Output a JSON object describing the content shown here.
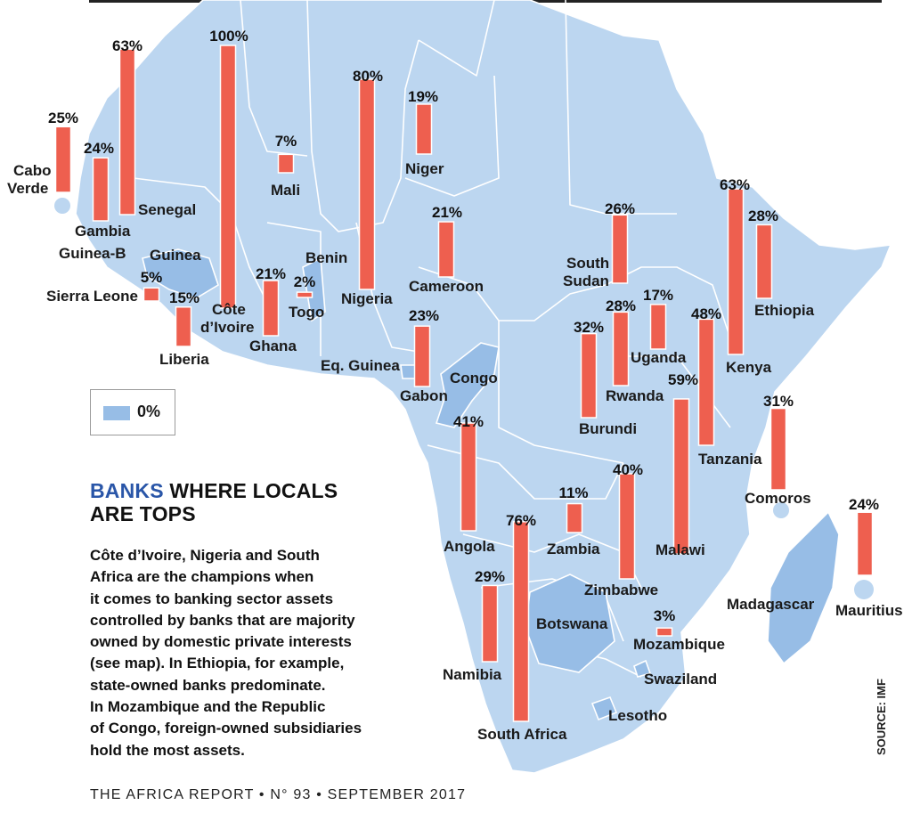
{
  "title_accent": "BANKS",
  "title_rest_line1": " WHERE LOCALS",
  "title_line2": "ARE TOPS",
  "body_lines": [
    "Côte d’Ivoire, Nigeria and South",
    "Africa are the champions when",
    "it comes to banking sector assets",
    "controlled by banks that are majority",
    "owned by domestic private interests",
    "(see map). In Ethiopia, for example,",
    "state-owned banks predominate.",
    "In Mozambique and the Republic",
    "of Congo, foreign-owned subsidiaries",
    "hold the most assets."
  ],
  "legend_label": "0%",
  "source": "SOURCE: IMF",
  "footer": "THE AFRICA REPORT • N° 93 • SEPTEMBER 2017",
  "colors": {
    "bar": "#ee5f4f",
    "land": "#bcd6f0",
    "zero": "#97bde6",
    "accent": "#2a56a8"
  },
  "map_data": {
    "measure": "Share of banking sector assets controlled by majority domestic-private banks (%)",
    "countries": [
      {
        "name": "Cabo Verde",
        "value": 25
      },
      {
        "name": "Gambia",
        "value": 24
      },
      {
        "name": "Senegal",
        "value": 63
      },
      {
        "name": "Côte d’Ivoire",
        "value": 100
      },
      {
        "name": "Mali",
        "value": 7
      },
      {
        "name": "Nigeria",
        "value": 80
      },
      {
        "name": "Niger",
        "value": 19
      },
      {
        "name": "Sierra Leone",
        "value": 5
      },
      {
        "name": "Liberia",
        "value": 15
      },
      {
        "name": "Ghana",
        "value": 21
      },
      {
        "name": "Togo",
        "value": 2
      },
      {
        "name": "Cameroon",
        "value": 21
      },
      {
        "name": "Gabon",
        "value": 23
      },
      {
        "name": "South Sudan",
        "value": 26
      },
      {
        "name": "Rwanda",
        "value": 28
      },
      {
        "name": "Uganda",
        "value": 17
      },
      {
        "name": "Burundi",
        "value": 32
      },
      {
        "name": "Tanzania",
        "value": 48
      },
      {
        "name": "Kenya",
        "value": 63
      },
      {
        "name": "Ethiopia",
        "value": 28
      },
      {
        "name": "Malawi",
        "value": 59
      },
      {
        "name": "Comoros",
        "value": 31
      },
      {
        "name": "Mauritius",
        "value": 24
      },
      {
        "name": "Angola",
        "value": 41
      },
      {
        "name": "Zambia",
        "value": 11
      },
      {
        "name": "Zimbabwe",
        "value": 40
      },
      {
        "name": "Mozambique",
        "value": 3
      },
      {
        "name": "Namibia",
        "value": 29
      },
      {
        "name": "South Africa",
        "value": 76
      }
    ],
    "zero_value_label": "0%",
    "other_labels": [
      "Guinea-B",
      "Guinea",
      "Benin",
      "Eq. Guinea",
      "Congo",
      "Botswana",
      "Madagascar",
      "Swaziland",
      "Lesotho"
    ]
  }
}
